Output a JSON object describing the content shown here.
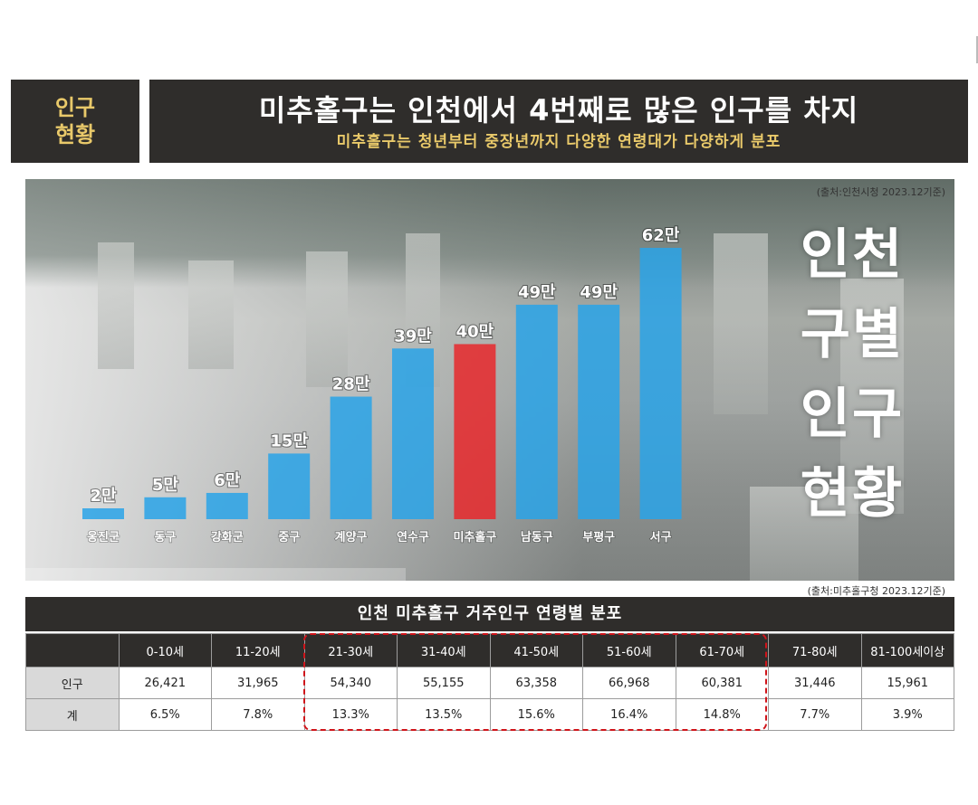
{
  "header": {
    "left_line1": "인구",
    "left_line2": "현황",
    "title": "미추홀구는 인천에서 4번째로 많은 인구를 차지",
    "subtitle": "미추홀구는 청년부터 중장년까지 다양한 연령대가 다양하게 분포"
  },
  "photo_chart": {
    "source": "(출처:인천시청 2023.12기준)",
    "side_title": [
      "인천",
      "구별",
      "인구",
      "현황"
    ]
  },
  "chart_data": {
    "type": "bar",
    "title": "",
    "categories": [
      "옹진군",
      "동구",
      "강화군",
      "중구",
      "계양구",
      "연수구",
      "미추홀구",
      "남동구",
      "부평구",
      "서구"
    ],
    "values": [
      2,
      5,
      6,
      15,
      28,
      39,
      40,
      49,
      49,
      62
    ],
    "value_labels": [
      "2만",
      "5만",
      "6만",
      "15만",
      "28만",
      "39만",
      "40만",
      "49만",
      "49만",
      "62만"
    ],
    "colors": {
      "default": "#29a3e8",
      "highlight": "#e8282b"
    },
    "highlight_category": "미추홀구",
    "ylim": [
      0,
      62
    ],
    "grid": false,
    "legend": "none"
  },
  "table_section": {
    "source": "(출처:미추홀구청 2023.12기준)",
    "title": "인천 미추홀구 거주인구 연령별 분포",
    "headers": [
      "",
      "0-10세",
      "11-20세",
      "21-30세",
      "31-40세",
      "41-50세",
      "51-60세",
      "61-70세",
      "71-80세",
      "81-100세이상"
    ],
    "rows": [
      [
        "인구",
        "26,421",
        "31,965",
        "54,340",
        "55,155",
        "63,358",
        "66,968",
        "60,381",
        "31,446",
        "15,961"
      ],
      [
        "계",
        "6.5%",
        "7.8%",
        "13.3%",
        "13.5%",
        "15.6%",
        "16.4%",
        "14.8%",
        "7.7%",
        "3.9%"
      ]
    ],
    "highlight_color": "#d0141a"
  }
}
